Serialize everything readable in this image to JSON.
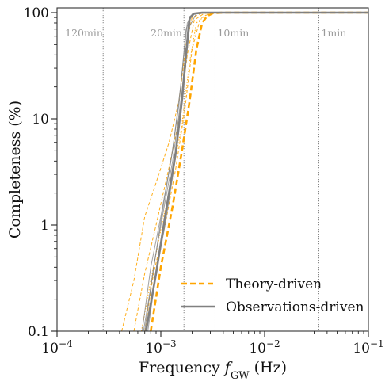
{
  "chart_data": {
    "type": "line",
    "xscale": "log",
    "yscale": "log",
    "xlim": [
      0.0001,
      0.1
    ],
    "ylim": [
      0.1,
      100
    ],
    "xlabel": "Frequency f_GW (Hz)",
    "xlabel_parts": {
      "prefix": "Frequency ",
      "var": "f",
      "sub": "GW",
      "suffix": " (Hz)"
    },
    "ylabel": "Completeness (%)",
    "xticks": [
      {
        "value": 0.0001,
        "base": "10",
        "exp": "−4"
      },
      {
        "value": 0.001,
        "base": "10",
        "exp": "−3"
      },
      {
        "value": 0.01,
        "base": "10",
        "exp": "−2"
      },
      {
        "value": 0.1,
        "base": "10",
        "exp": "−1"
      }
    ],
    "yticks": [
      {
        "value": 0.1,
        "label": "0.1"
      },
      {
        "value": 1,
        "label": "1"
      },
      {
        "value": 10,
        "label": "10"
      },
      {
        "value": 100,
        "label": "100"
      }
    ],
    "vlines": [
      {
        "x": 0.000278,
        "label": "120min"
      },
      {
        "x": 0.00167,
        "label": "20min"
      },
      {
        "x": 0.00333,
        "label": "10min"
      },
      {
        "x": 0.0333,
        "label": "1min"
      }
    ],
    "legend": {
      "position": "lower-right",
      "entries": [
        {
          "label": "Theory-driven",
          "color": "#FFA500",
          "style": "dashed"
        },
        {
          "label": "Observations-driven",
          "color": "#808080",
          "style": "solid"
        }
      ]
    },
    "series": [
      {
        "kind": "thin",
        "color": "#FFA500",
        "style": "dashed",
        "x": [
          0.00042,
          0.00055,
          0.0007,
          0.0009,
          0.0012,
          0.0015,
          0.00175,
          0.002,
          0.0025,
          0.003,
          0.005,
          0.1
        ],
        "y": [
          0.1,
          0.3,
          1.2,
          2.5,
          6,
          15,
          50,
          90,
          99,
          100,
          100,
          100
        ]
      },
      {
        "kind": "thin",
        "color": "#FFA500",
        "style": "dashed",
        "x": [
          0.00055,
          0.0007,
          0.0009,
          0.0012,
          0.0015,
          0.0018,
          0.0021,
          0.0026,
          0.0032,
          0.005,
          0.1
        ],
        "y": [
          0.1,
          0.35,
          1.0,
          3.5,
          10,
          40,
          85,
          98,
          100,
          100,
          100
        ]
      },
      {
        "kind": "thin",
        "color": "#FFA500",
        "style": "dotted",
        "x": [
          0.00065,
          0.0008,
          0.001,
          0.0013,
          0.0016,
          0.0019,
          0.0022,
          0.0028,
          0.0035,
          0.005,
          0.1
        ],
        "y": [
          0.1,
          0.3,
          0.9,
          3,
          9,
          35,
          80,
          97,
          100,
          100,
          100
        ]
      },
      {
        "kind": "thin",
        "color": "#FFA500",
        "style": "dashed",
        "x": [
          0.0007,
          0.00085,
          0.0011,
          0.0014,
          0.0017,
          0.002,
          0.0024,
          0.003,
          0.004,
          0.1
        ],
        "y": [
          0.1,
          0.35,
          1.0,
          3.5,
          12,
          45,
          88,
          99,
          100,
          100
        ]
      },
      {
        "kind": "thin",
        "color": "#808080",
        "style": "solid",
        "x": [
          0.00066,
          0.0008,
          0.001,
          0.0013,
          0.00155,
          0.0018,
          0.0021,
          0.003,
          0.1
        ],
        "y": [
          0.1,
          0.4,
          1.2,
          5,
          20,
          80,
          98,
          100,
          100
        ]
      },
      {
        "kind": "thin",
        "color": "#808080",
        "style": "solid",
        "x": [
          0.00075,
          0.0009,
          0.0011,
          0.0014,
          0.0016,
          0.0019,
          0.0022,
          0.003,
          0.1
        ],
        "y": [
          0.1,
          0.35,
          1.0,
          4.5,
          15,
          75,
          98,
          100,
          100
        ]
      },
      {
        "kind": "thin",
        "color": "#808080",
        "style": "solid",
        "x": [
          0.0007,
          0.00085,
          0.00105,
          0.0013,
          0.0016,
          0.00185,
          0.0021,
          0.003,
          0.1
        ],
        "y": [
          0.1,
          0.4,
          1.3,
          4,
          18,
          85,
          99,
          100,
          100
        ]
      },
      {
        "kind": "thin",
        "color": "#808080",
        "style": "solid",
        "x": [
          0.00068,
          0.00082,
          0.001,
          0.00125,
          0.0015,
          0.00175,
          0.002,
          0.003,
          0.1
        ],
        "y": [
          0.1,
          0.3,
          1.1,
          4,
          14,
          70,
          97,
          100,
          100
        ]
      },
      {
        "kind": "thick",
        "color": "#FFA500",
        "style": "dashed",
        "x": [
          0.0008,
          0.001,
          0.0013,
          0.0016,
          0.0019,
          0.0022,
          0.0025,
          0.0028,
          0.0032,
          0.004,
          0.1
        ],
        "y": [
          0.1,
          0.4,
          1.5,
          5,
          15,
          45,
          80,
          93,
          99,
          100,
          100
        ]
      },
      {
        "kind": "thick",
        "color": "#808080",
        "style": "solid",
        "x": [
          0.00072,
          0.0009,
          0.0011,
          0.0014,
          0.0016,
          0.00175,
          0.0019,
          0.0021,
          0.0025,
          0.003,
          0.1
        ],
        "y": [
          0.1,
          0.35,
          1.2,
          5,
          15,
          40,
          90,
          98,
          100,
          100,
          100
        ]
      }
    ]
  }
}
